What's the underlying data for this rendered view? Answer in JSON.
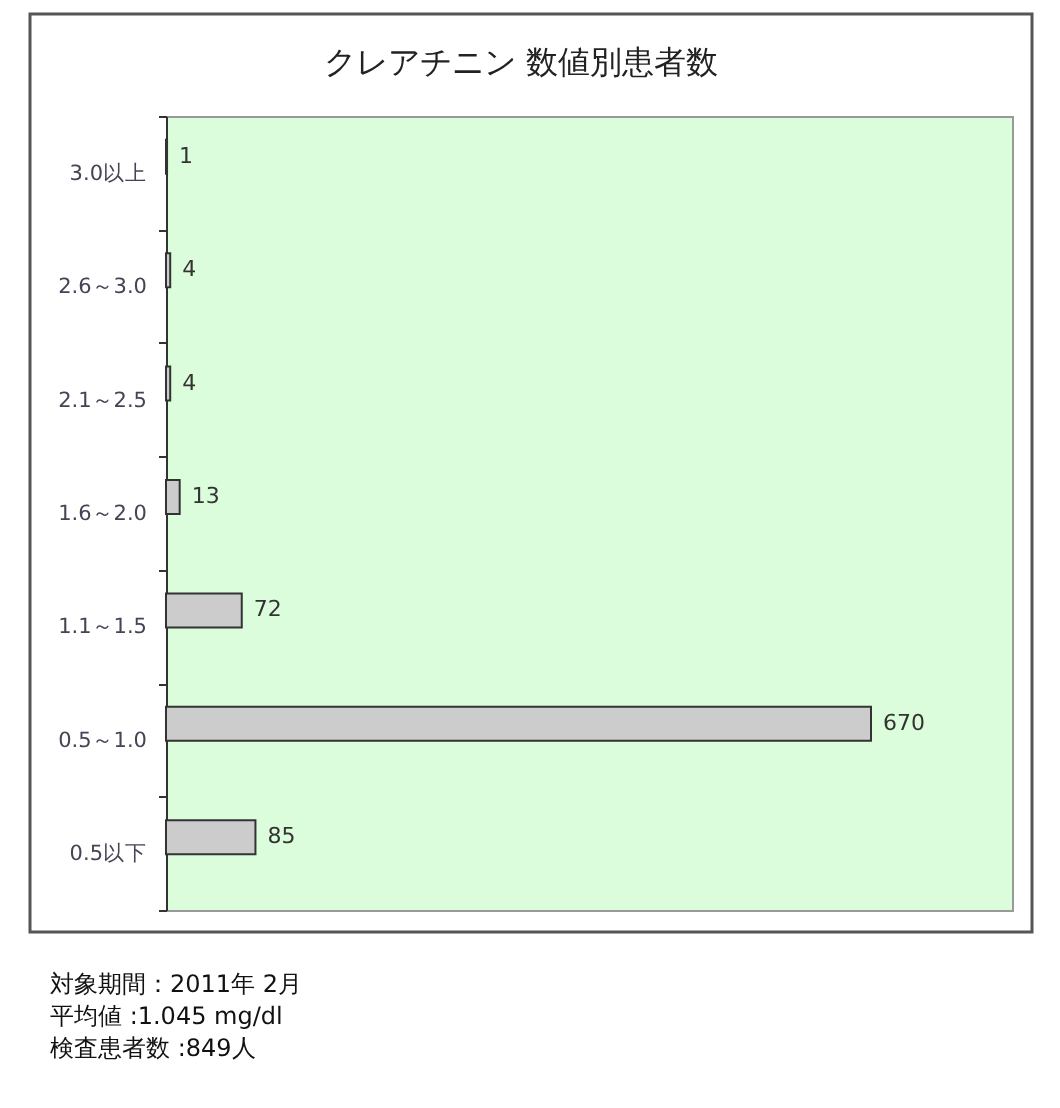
{
  "chart_data": {
    "type": "bar",
    "orientation": "horizontal",
    "title": "クレアチニン 数値別患者数",
    "categories": [
      "3.0以上",
      "2.6～3.0",
      "2.1～2.5",
      "1.6～2.0",
      "1.1～1.5",
      "0.5～1.0",
      "0.5以下"
    ],
    "values": [
      1,
      4,
      4,
      13,
      72,
      670,
      85
    ],
    "color": "#cccccc",
    "data_labels": true,
    "tick_labels": "y",
    "annotations": [
      "対象期間：2011年 2月",
      "平均値 :1.045 mg/dl",
      "検査患者数 :849人"
    ]
  }
}
